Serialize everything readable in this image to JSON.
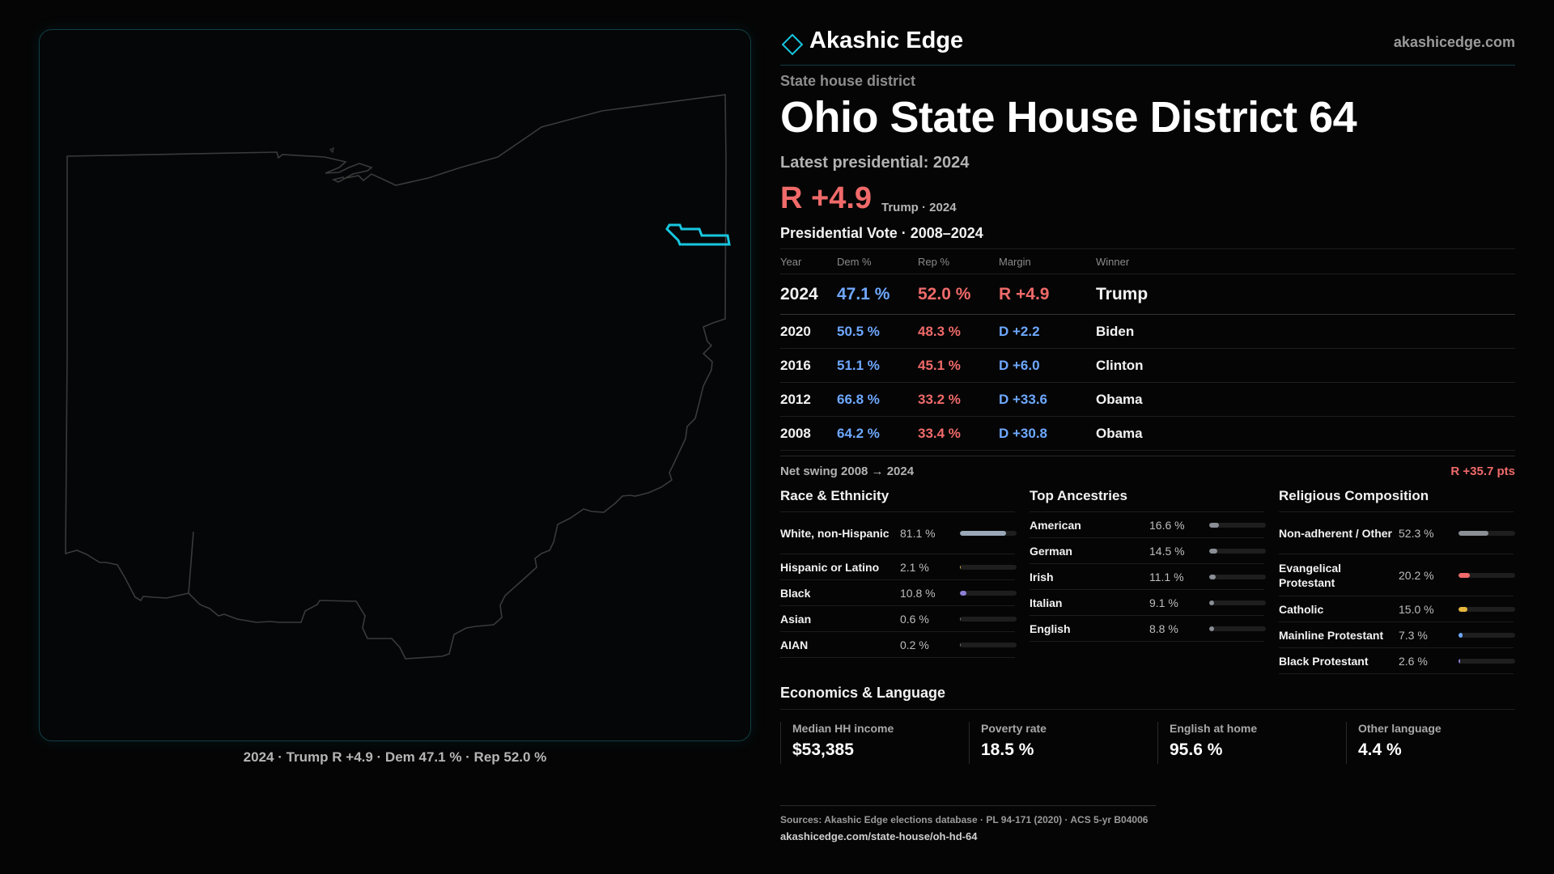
{
  "brand": {
    "name": "Akashic Edge",
    "url": "akashicedge.com"
  },
  "kicker": "State house district",
  "title": "Ohio State House District 64",
  "latest_label": "Latest presidential: 2024",
  "latest_margin": "R +4.9",
  "latest_sub": "Trump · 2024",
  "vote_section_title": "Presidential Vote · 2008–2024",
  "vote_table": {
    "headers": {
      "year": "Year",
      "dem": "Dem %",
      "rep": "Rep %",
      "margin": "Margin",
      "winner": "Winner"
    },
    "rows": [
      {
        "year": "2024",
        "dem": "47.1 %",
        "rep": "52.0 %",
        "margin": "R +4.9",
        "winner": "Trump"
      },
      {
        "year": "2020",
        "dem": "50.5 %",
        "rep": "48.3 %",
        "margin": "D +2.2",
        "winner": "Biden"
      },
      {
        "year": "2016",
        "dem": "51.1 %",
        "rep": "45.1 %",
        "margin": "D +6.0",
        "winner": "Clinton"
      },
      {
        "year": "2012",
        "dem": "66.8 %",
        "rep": "33.2 %",
        "margin": "D +33.6",
        "winner": "Obama"
      },
      {
        "year": "2008",
        "dem": "64.2 %",
        "rep": "33.4 %",
        "margin": "D +30.8",
        "winner": "Obama"
      }
    ]
  },
  "swing": {
    "label": "Net swing 2008 → 2024",
    "value": "R +35.7 pts"
  },
  "race": {
    "title": "Race & Ethnicity",
    "items": [
      {
        "label": "White, non-Hispanic",
        "pct": "81.1 %",
        "share": 0.811,
        "color": "#9aa8b8"
      },
      {
        "label": "Hispanic or Latino",
        "pct": "2.1 %",
        "share": 0.021,
        "color": "#d8a24a"
      },
      {
        "label": "Black",
        "pct": "10.8 %",
        "share": 0.108,
        "color": "#8e7fd6"
      },
      {
        "label": "Asian",
        "pct": "0.6 %",
        "share": 0.006,
        "color": "#777777"
      },
      {
        "label": "AIAN",
        "pct": "0.2 %",
        "share": 0.002,
        "color": "#777777"
      }
    ]
  },
  "ancestry": {
    "title": "Top Ancestries",
    "items": [
      {
        "label": "American",
        "pct": "16.6 %",
        "share": 0.166,
        "color": "#8a8f96"
      },
      {
        "label": "German",
        "pct": "14.5 %",
        "share": 0.145,
        "color": "#8a8f96"
      },
      {
        "label": "Irish",
        "pct": "11.1 %",
        "share": 0.111,
        "color": "#8a8f96"
      },
      {
        "label": "Italian",
        "pct": "9.1 %",
        "share": 0.091,
        "color": "#8a8f96"
      },
      {
        "label": "English",
        "pct": "8.8 %",
        "share": 0.088,
        "color": "#8a8f96"
      }
    ]
  },
  "religion": {
    "title": "Religious Composition",
    "items": [
      {
        "label": "Non-adherent / Other",
        "pct": "52.3 %",
        "share": 0.523,
        "color": "#8a8f96"
      },
      {
        "label": "Evangelical Protestant",
        "pct": "20.2 %",
        "share": 0.202,
        "color": "#f06a6a"
      },
      {
        "label": "Catholic",
        "pct": "15.0 %",
        "share": 0.15,
        "color": "#e7b73c"
      },
      {
        "label": "Mainline Protestant",
        "pct": "7.3 %",
        "share": 0.073,
        "color": "#6ea8ff"
      },
      {
        "label": "Black Protestant",
        "pct": "2.6 %",
        "share": 0.026,
        "color": "#8e7fd6"
      }
    ]
  },
  "economics": {
    "title": "Economics & Language",
    "items": [
      {
        "label": "Median HH income",
        "value": "$53,385"
      },
      {
        "label": "Poverty rate",
        "value": "18.5 %"
      },
      {
        "label": "English at home",
        "value": "95.6 %"
      },
      {
        "label": "Other language",
        "value": "4.4 %"
      }
    ]
  },
  "map_caption": "2024 · Trump  R +4.9 · Dem 47.1 % · Rep 52.0 %",
  "footer": {
    "sources": "Sources: Akashic Edge elections database · PL 94-171 (2020) · ACS 5-yr B04006",
    "url": "akashicedge.com/state-house/oh-hd-64"
  },
  "colors": {
    "accent": "#18c6e0",
    "dem": "#6ea8ff",
    "rep": "#f06a6a"
  }
}
